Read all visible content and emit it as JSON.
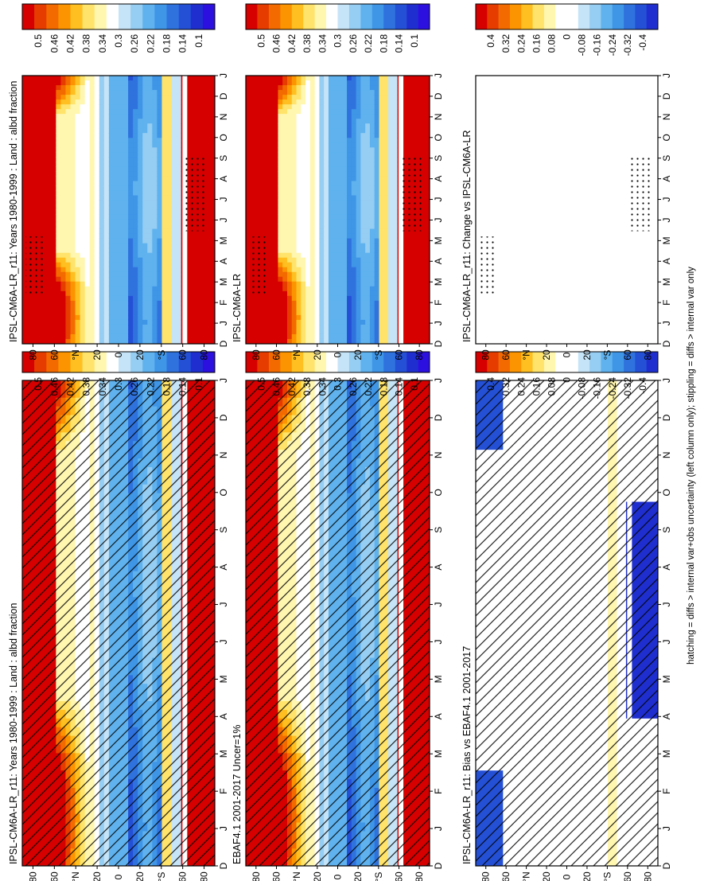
{
  "figure": {
    "footnote": "hatching = diffs > internal var+obs uncertainty (left column only); stippling = diffs > internal var only"
  },
  "colorbars": {
    "mean": {
      "labels": [
        "0.5",
        "0.46",
        "0.42",
        "0.38",
        "0.34",
        "0.3",
        "0.26",
        "0.22",
        "0.18",
        "0.14",
        "0.1"
      ],
      "colors": [
        "#d60000",
        "#e63c00",
        "#f26a00",
        "#fb9400",
        "#ffbf20",
        "#ffe36a",
        "#fff6b0",
        "#ffffff",
        "#c6e4f7",
        "#96cdf2",
        "#5fb2ee",
        "#3f95e6",
        "#2f72de",
        "#2450d6",
        "#1f2fcf",
        "#2b10e0"
      ]
    },
    "diff": {
      "labels": [
        "0.4",
        "0.32",
        "0.24",
        "0.16",
        "0.08",
        "0",
        "-0.08",
        "-0.16",
        "-0.24",
        "-0.32",
        "-0.4"
      ],
      "colors": [
        "#d60000",
        "#e63c00",
        "#f26a00",
        "#fb9400",
        "#ffbf20",
        "#ffe36a",
        "#fff6b0",
        "#ffffff",
        "#ffffff",
        "#c6e4f7",
        "#96cdf2",
        "#5fb2ee",
        "#3f95e6",
        "#2f72de",
        "#2450d6",
        "#1f2fcf"
      ]
    }
  },
  "axes": {
    "lat_ticks": [
      "80",
      "60",
      "°N",
      "20",
      "0",
      "20",
      "°S",
      "60",
      "80"
    ],
    "month_ticks": [
      "D",
      "J",
      "F",
      "M",
      "A",
      "M",
      "J",
      "J",
      "A",
      "S",
      "O",
      "N",
      "D",
      "J"
    ]
  },
  "chart_data": [
    {
      "type": "heatmap",
      "title": "IPSL-CM6A-LR_r11: Years 1980-1999 : Land : albd fraction",
      "colorbar": "mean",
      "field": "mean",
      "hatch": true
    },
    {
      "type": "heatmap",
      "title": "IPSL-CM6A-LR_r11: Years 1980-1999 : Land : albd fraction",
      "colorbar": "mean",
      "field": "mean",
      "stipple": true
    },
    {
      "type": "heatmap",
      "title": "EBAF4.1 2001-2017 Uncer=1%",
      "colorbar": "mean",
      "field": "obs",
      "hatch": true
    },
    {
      "type": "heatmap",
      "title": "IPSL-CM6A-LR",
      "colorbar": "mean",
      "field": "mean2",
      "stipple": true
    },
    {
      "type": "heatmap",
      "title": "IPSL-CM6A-LR_r11: Bias vs EBAF4.1 2001-2017",
      "colorbar": "diff",
      "field": "bias",
      "hatch": true
    },
    {
      "type": "heatmap",
      "title": "IPSL-CM6A-LR_r11: Change vs IPSL-CM6A-LR",
      "colorbar": "diff",
      "field": "change",
      "stipple": true
    }
  ]
}
